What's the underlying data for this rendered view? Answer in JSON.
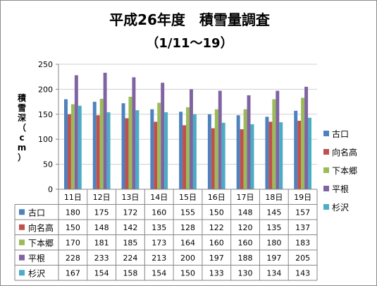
{
  "chart_data": {
    "type": "bar",
    "title": "平成26年度　積雪量調査",
    "subtitle": "（1/11～19）",
    "ylabel": "積雪深（cm）",
    "ylim": [
      0,
      250
    ],
    "yticks": [
      0,
      50,
      100,
      150,
      200,
      250
    ],
    "grid": true,
    "legend_position": "right",
    "categories": [
      "11日",
      "12日",
      "13日",
      "14日",
      "15日",
      "16日",
      "17日",
      "18日",
      "19日"
    ],
    "series": [
      {
        "name": "古口",
        "color": "#4F81BD",
        "values": [
          180,
          175,
          172,
          160,
          155,
          150,
          148,
          145,
          157
        ]
      },
      {
        "name": "向名高",
        "color": "#C0504D",
        "values": [
          150,
          148,
          142,
          135,
          128,
          122,
          120,
          135,
          137
        ]
      },
      {
        "name": "下本郷",
        "color": "#9BBB59",
        "values": [
          170,
          181,
          185,
          173,
          164,
          160,
          160,
          180,
          183
        ]
      },
      {
        "name": "平根",
        "color": "#8064A2",
        "values": [
          228,
          233,
          224,
          213,
          200,
          197,
          188,
          197,
          205
        ]
      },
      {
        "name": "杉沢",
        "color": "#4BACC6",
        "values": [
          167,
          154,
          158,
          154,
          150,
          133,
          130,
          134,
          143
        ]
      }
    ]
  }
}
